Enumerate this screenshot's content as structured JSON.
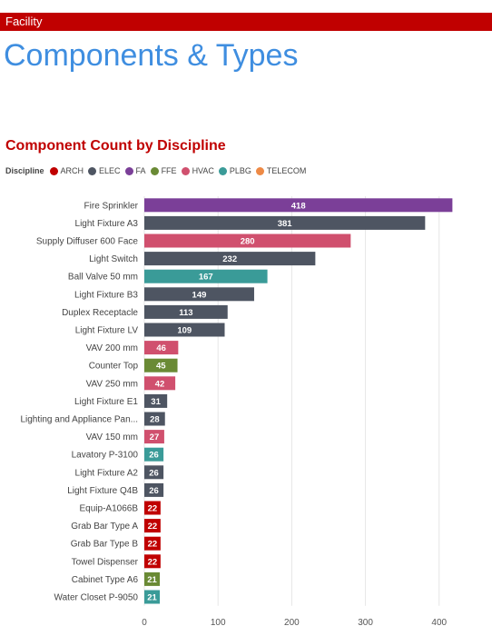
{
  "header": {
    "section_label": "Facility",
    "page_title": "Components & Types"
  },
  "chart_data": {
    "type": "bar",
    "orientation": "horizontal",
    "title": "Component Count by Discipline",
    "legend": {
      "title": "Discipline",
      "placement": "top-left",
      "items": [
        {
          "name": "ARCH",
          "color": "#c00000"
        },
        {
          "name": "ELEC",
          "color": "#4e5562"
        },
        {
          "name": "FA",
          "color": "#7b3f98"
        },
        {
          "name": "FFE",
          "color": "#6a8a35"
        },
        {
          "name": "HVAC",
          "color": "#d0506e"
        },
        {
          "name": "PLBG",
          "color": "#3a9b98"
        },
        {
          "name": "TELECOM",
          "color": "#ee8a46"
        }
      ]
    },
    "categories": [
      "Fire Sprinkler",
      "Light Fixture A3",
      "Supply Diffuser 600 Face",
      "Light Switch",
      "Ball Valve 50 mm",
      "Light Fixture B3",
      "Duplex Receptacle",
      "Light Fixture LV",
      "VAV 200 mm",
      "Counter Top",
      "VAV 250 mm",
      "Light Fixture E1",
      "Lighting and Appliance Pan...",
      "VAV 150 mm",
      "Lavatory P-3100",
      "Light Fixture A2",
      "Light Fixture Q4B",
      "Equip-A1066B",
      "Grab Bar Type A",
      "Grab Bar Type B",
      "Towel Dispenser",
      "Cabinet Type A6",
      "Water Closet P-9050"
    ],
    "values": [
      418,
      381,
      280,
      232,
      167,
      149,
      113,
      109,
      46,
      45,
      42,
      31,
      28,
      27,
      26,
      26,
      26,
      22,
      22,
      22,
      22,
      21,
      21
    ],
    "disciplines": [
      "FA",
      "ELEC",
      "HVAC",
      "ELEC",
      "PLBG",
      "ELEC",
      "ELEC",
      "ELEC",
      "HVAC",
      "FFE",
      "HVAC",
      "ELEC",
      "ELEC",
      "HVAC",
      "PLBG",
      "ELEC",
      "ELEC",
      "ARCH",
      "ARCH",
      "ARCH",
      "ARCH",
      "FFE",
      "PLBG"
    ],
    "x_ticks": [
      "0",
      "100",
      "200",
      "300",
      "400"
    ],
    "xlim": [
      0,
      420
    ],
    "grid": true,
    "data_labels": true
  }
}
